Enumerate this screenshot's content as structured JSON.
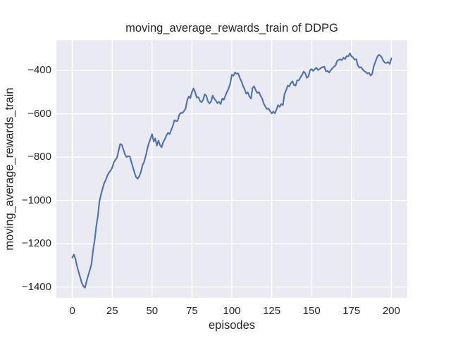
{
  "chart_data": {
    "type": "line",
    "title": "moving_average_rewards_train of DDPG",
    "xlabel": "episodes",
    "ylabel": "moving_average_rewards_train",
    "x_ticks": [
      0,
      25,
      50,
      75,
      100,
      125,
      150,
      175,
      200
    ],
    "y_ticks": [
      -400,
      -600,
      -800,
      -1000,
      -1200,
      -1400
    ],
    "xlim": [
      -10,
      210
    ],
    "ylim": [
      -1450,
      -260
    ],
    "grid": true,
    "legend": "none",
    "style": {
      "figure_background": "#ffffff",
      "plot_background": "#eaeaf2",
      "grid_color": "#ffffff",
      "line_color": "#4c72b0",
      "text_color": "#262626"
    },
    "series": [
      {
        "name": "moving_average_rewards_train",
        "x_start": 0,
        "x_step": 1,
        "values": [
          -1264,
          -1250,
          -1272,
          -1305,
          -1332,
          -1358,
          -1382,
          -1397,
          -1403,
          -1372,
          -1345,
          -1322,
          -1295,
          -1230,
          -1185,
          -1120,
          -1073,
          -1005,
          -972,
          -945,
          -920,
          -905,
          -885,
          -872,
          -862,
          -849,
          -824,
          -812,
          -803,
          -770,
          -740,
          -743,
          -765,
          -787,
          -800,
          -795,
          -797,
          -822,
          -848,
          -872,
          -893,
          -900,
          -888,
          -868,
          -838,
          -822,
          -795,
          -762,
          -735,
          -715,
          -694,
          -728,
          -714,
          -747,
          -724,
          -745,
          -755,
          -730,
          -718,
          -700,
          -688,
          -694,
          -675,
          -657,
          -630,
          -634,
          -633,
          -605,
          -596,
          -597,
          -587,
          -576,
          -538,
          -520,
          -528,
          -499,
          -483,
          -500,
          -525,
          -523,
          -540,
          -547,
          -535,
          -510,
          -517,
          -543,
          -552,
          -543,
          -516,
          -530,
          -540,
          -551,
          -545,
          -555,
          -530,
          -535,
          -516,
          -498,
          -483,
          -460,
          -420,
          -424,
          -409,
          -415,
          -414,
          -434,
          -450,
          -470,
          -487,
          -507,
          -501,
          -520,
          -530,
          -480,
          -473,
          -492,
          -504,
          -500,
          -516,
          -530,
          -553,
          -567,
          -578,
          -576,
          -588,
          -598,
          -590,
          -598,
          -580,
          -560,
          -568,
          -555,
          -560,
          -510,
          -492,
          -470,
          -474,
          -458,
          -450,
          -468,
          -470,
          -445,
          -446,
          -432,
          -421,
          -405,
          -412,
          -434,
          -428,
          -399,
          -394,
          -402,
          -394,
          -387,
          -398,
          -394,
          -387,
          -385,
          -383,
          -404,
          -402,
          -410,
          -399,
          -390,
          -383,
          -377,
          -356,
          -351,
          -349,
          -352,
          -341,
          -347,
          -333,
          -335,
          -321,
          -335,
          -340,
          -350,
          -348,
          -377,
          -387,
          -385,
          -395,
          -403,
          -407,
          -414,
          -411,
          -424,
          -415,
          -380,
          -360,
          -340,
          -328,
          -331,
          -340,
          -356,
          -364,
          -366,
          -361,
          -370,
          -344
        ]
      }
    ]
  }
}
